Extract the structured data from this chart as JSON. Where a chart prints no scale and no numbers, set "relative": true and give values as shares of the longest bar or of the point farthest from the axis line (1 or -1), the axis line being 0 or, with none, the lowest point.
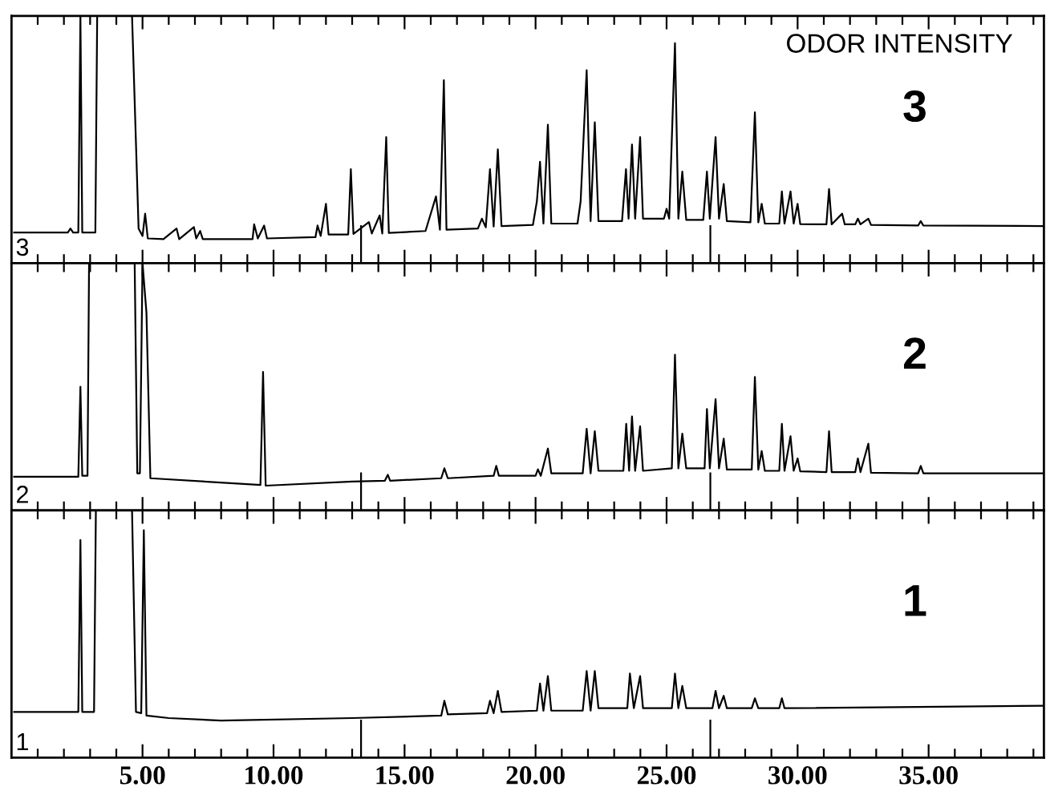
{
  "chart_data": [
    {
      "type": "line",
      "relative": true,
      "tick_labels": false,
      "xlim": [
        0,
        39.4
      ],
      "xticks": [
        {
          "value": 5,
          "label": null
        },
        {
          "value": 10,
          "label": null
        },
        {
          "value": 15,
          "label": null
        },
        {
          "value": 20,
          "label": null
        },
        {
          "value": 25,
          "label": null
        },
        {
          "value": 30,
          "label": null
        },
        {
          "value": 35,
          "label": null
        }
      ],
      "annotations": [
        "ODOR INTENSITY",
        "3",
        "3"
      ],
      "ref_lines": [
        {
          "axis": "x",
          "value": 13.34,
          "label": null
        },
        {
          "axis": "x",
          "value": 26.67,
          "label": null
        }
      ],
      "series": [
        {
          "color": "#000000",
          "x": [
            0.1,
            2.15,
            2.25,
            2.35,
            2.55,
            2.63,
            2.7,
            3.2,
            3.27,
            4.6,
            4.85,
            5.0,
            5.1,
            5.2,
            5.8,
            6.3,
            6.4,
            6.96,
            7.05,
            7.2,
            7.3,
            9.2,
            9.26,
            9.4,
            9.64,
            9.75,
            11.6,
            11.68,
            11.8,
            12.0,
            12.1,
            12.85,
            12.95,
            13.05,
            13.64,
            13.75,
            14.05,
            14.15,
            14.3,
            14.4,
            15.8,
            16.2,
            16.35,
            16.5,
            16.6,
            17.8,
            17.95,
            18.1,
            18.26,
            18.4,
            18.56,
            18.7,
            19.9,
            20.05,
            20.17,
            20.3,
            20.47,
            20.6,
            21.6,
            21.72,
            21.95,
            22.1,
            22.26,
            22.4,
            23.3,
            23.45,
            23.55,
            23.68,
            23.8,
            23.99,
            24.1,
            24.9,
            25.0,
            25.1,
            25.32,
            25.45,
            25.6,
            25.75,
            26.4,
            26.54,
            26.65,
            26.87,
            27.0,
            27.18,
            27.3,
            28.2,
            28.37,
            28.5,
            28.63,
            28.75,
            29.3,
            29.4,
            29.5,
            29.73,
            29.85,
            30.0,
            30.1,
            31.1,
            31.2,
            31.3,
            31.7,
            31.8,
            32.2,
            32.3,
            32.4,
            32.7,
            32.8,
            34.6,
            34.7,
            34.8,
            39.4
          ],
          "values": [
            0.124,
            0.124,
            0.14,
            0.124,
            0.124,
            1.0,
            0.124,
            0.124,
            1.0,
            1.0,
            0.14,
            0.11,
            0.2,
            0.1,
            0.097,
            0.14,
            0.097,
            0.146,
            0.1,
            0.13,
            0.097,
            0.097,
            0.157,
            0.1,
            0.152,
            0.1,
            0.105,
            0.152,
            0.11,
            0.24,
            0.116,
            0.116,
            0.38,
            0.118,
            0.166,
            0.12,
            0.193,
            0.12,
            0.51,
            0.122,
            0.13,
            0.27,
            0.135,
            0.74,
            0.135,
            0.14,
            0.18,
            0.145,
            0.38,
            0.148,
            0.46,
            0.15,
            0.155,
            0.25,
            0.41,
            0.16,
            0.56,
            0.16,
            0.16,
            0.25,
            0.78,
            0.17,
            0.57,
            0.17,
            0.17,
            0.38,
            0.18,
            0.48,
            0.18,
            0.51,
            0.18,
            0.18,
            0.22,
            0.18,
            0.89,
            0.18,
            0.37,
            0.175,
            0.175,
            0.37,
            0.18,
            0.51,
            0.18,
            0.32,
            0.17,
            0.165,
            0.61,
            0.165,
            0.24,
            0.16,
            0.16,
            0.29,
            0.16,
            0.29,
            0.16,
            0.24,
            0.158,
            0.157,
            0.3,
            0.157,
            0.2,
            0.157,
            0.157,
            0.18,
            0.157,
            0.18,
            0.155,
            0.152,
            0.17,
            0.152,
            0.15
          ]
        }
      ]
    },
    {
      "type": "line",
      "relative": true,
      "tick_labels": false,
      "xlim": [
        0,
        39.4
      ],
      "xticks": [
        {
          "value": 5,
          "label": null
        },
        {
          "value": 10,
          "label": null
        },
        {
          "value": 15,
          "label": null
        },
        {
          "value": 20,
          "label": null
        },
        {
          "value": 25,
          "label": null
        },
        {
          "value": 30,
          "label": null
        },
        {
          "value": 35,
          "label": null
        }
      ],
      "annotations": [
        "2",
        "2"
      ],
      "ref_lines": [
        {
          "axis": "x",
          "value": 13.34,
          "label": null
        },
        {
          "axis": "x",
          "value": 26.67,
          "label": null
        }
      ],
      "series": [
        {
          "color": "#000000",
          "x": [
            0.1,
            2.55,
            2.63,
            2.7,
            2.9,
            2.96,
            4.7,
            4.8,
            4.9,
            5.0,
            5.15,
            5.3,
            9.5,
            9.6,
            9.7,
            13.0,
            14.25,
            14.36,
            14.45,
            16.4,
            16.52,
            16.65,
            18.4,
            18.5,
            18.6,
            20.0,
            20.09,
            20.2,
            20.47,
            20.6,
            21.8,
            21.95,
            22.1,
            22.26,
            22.4,
            23.35,
            23.46,
            23.57,
            23.68,
            23.8,
            23.99,
            24.1,
            25.2,
            25.32,
            25.45,
            25.6,
            25.75,
            26.45,
            26.54,
            26.65,
            26.87,
            27.0,
            27.18,
            27.3,
            28.25,
            28.37,
            28.5,
            28.63,
            28.75,
            29.3,
            29.4,
            29.5,
            29.73,
            29.85,
            30.0,
            30.1,
            31.1,
            31.2,
            31.3,
            32.2,
            32.3,
            32.4,
            32.7,
            32.8,
            34.6,
            34.7,
            34.8,
            39.4
          ],
          "values": [
            0.136,
            0.136,
            0.5,
            0.14,
            0.14,
            1.0,
            1.0,
            0.15,
            0.15,
            1.0,
            0.8,
            0.13,
            0.103,
            0.56,
            0.1,
            0.117,
            0.12,
            0.144,
            0.12,
            0.13,
            0.17,
            0.13,
            0.14,
            0.18,
            0.14,
            0.14,
            0.166,
            0.14,
            0.25,
            0.15,
            0.15,
            0.33,
            0.15,
            0.32,
            0.16,
            0.16,
            0.35,
            0.16,
            0.38,
            0.16,
            0.34,
            0.16,
            0.17,
            0.63,
            0.17,
            0.31,
            0.17,
            0.17,
            0.41,
            0.17,
            0.45,
            0.17,
            0.29,
            0.165,
            0.165,
            0.54,
            0.165,
            0.24,
            0.16,
            0.16,
            0.35,
            0.16,
            0.3,
            0.16,
            0.21,
            0.158,
            0.155,
            0.32,
            0.155,
            0.155,
            0.21,
            0.155,
            0.27,
            0.152,
            0.15,
            0.18,
            0.15,
            0.15
          ]
        }
      ]
    },
    {
      "type": "line",
      "relative": true,
      "tick_labels": "x",
      "xlim": [
        0,
        39.4
      ],
      "xticks": [
        {
          "value": 5,
          "label": "5.00"
        },
        {
          "value": 10,
          "label": "10.00"
        },
        {
          "value": 15,
          "label": "15.00"
        },
        {
          "value": 20,
          "label": "20.00"
        },
        {
          "value": 25,
          "label": "25.00"
        },
        {
          "value": 30,
          "label": "30.00"
        },
        {
          "value": 35,
          "label": "35.00"
        }
      ],
      "annotations": [
        "1",
        "1"
      ],
      "ref_lines": [
        {
          "axis": "x",
          "value": 13.34,
          "label": null
        },
        {
          "axis": "x",
          "value": 26.67,
          "label": null
        }
      ],
      "series": [
        {
          "color": "#000000",
          "x": [
            0.1,
            2.55,
            2.63,
            2.7,
            3.15,
            3.22,
            4.6,
            4.75,
            4.95,
            5.05,
            5.15,
            6.0,
            8.0,
            13.0,
            16.4,
            16.52,
            16.65,
            18.15,
            18.26,
            18.4,
            18.56,
            18.7,
            20.05,
            20.17,
            20.3,
            20.47,
            20.6,
            21.8,
            21.95,
            22.1,
            22.26,
            22.4,
            23.5,
            23.6,
            23.75,
            23.99,
            24.1,
            25.2,
            25.32,
            25.45,
            25.6,
            25.75,
            26.75,
            26.87,
            27.0,
            27.18,
            27.3,
            28.25,
            28.37,
            28.5,
            29.3,
            29.4,
            29.5,
            39.4
          ],
          "values": [
            0.185,
            0.185,
            0.88,
            0.185,
            0.185,
            1.0,
            1.0,
            0.185,
            0.18,
            0.92,
            0.17,
            0.16,
            0.15,
            0.16,
            0.17,
            0.23,
            0.175,
            0.18,
            0.23,
            0.18,
            0.27,
            0.185,
            0.19,
            0.3,
            0.19,
            0.33,
            0.19,
            0.19,
            0.35,
            0.19,
            0.35,
            0.2,
            0.2,
            0.34,
            0.2,
            0.33,
            0.2,
            0.2,
            0.34,
            0.2,
            0.29,
            0.2,
            0.2,
            0.27,
            0.2,
            0.25,
            0.2,
            0.2,
            0.24,
            0.2,
            0.2,
            0.24,
            0.2,
            0.21
          ]
        }
      ]
    }
  ]
}
